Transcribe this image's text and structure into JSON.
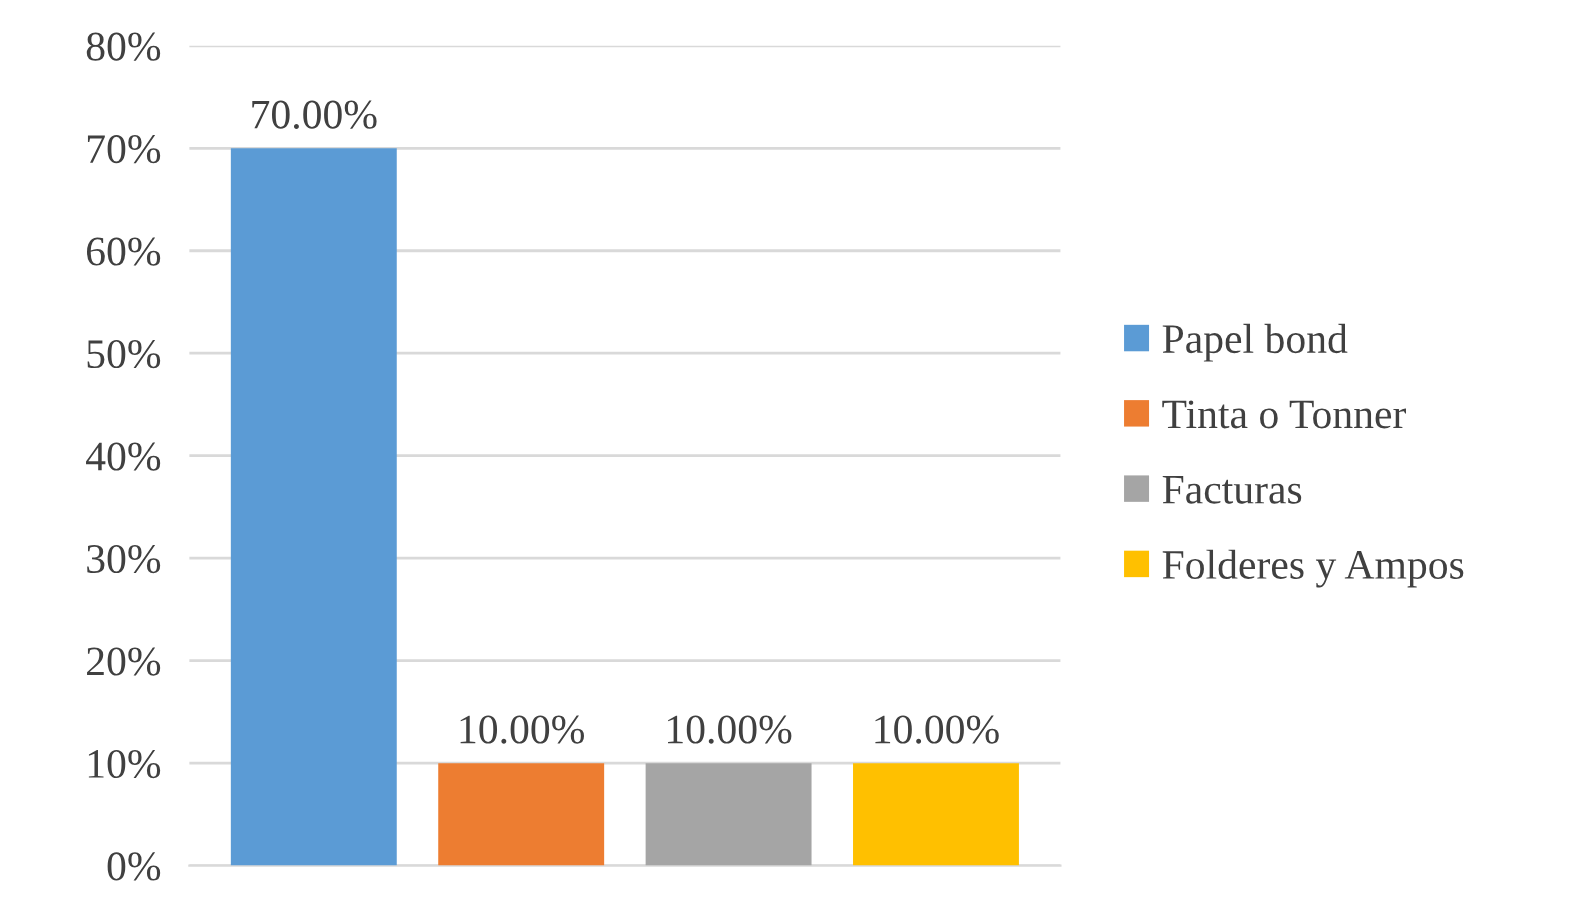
{
  "chart_data": {
    "type": "bar",
    "categories": [
      null
    ],
    "series": [
      {
        "name": "Papel bond",
        "color": "#5b9bd5",
        "values": [
          70
        ],
        "value_labels": [
          "70.00%"
        ]
      },
      {
        "name": "Tinta o Tonner",
        "color": "#ed7d31",
        "values": [
          10
        ],
        "value_labels": [
          "10.00%"
        ]
      },
      {
        "name": "Facturas",
        "color": "#a5a5a5",
        "values": [
          10
        ],
        "value_labels": [
          "10.00%"
        ]
      },
      {
        "name": "Folderes y Ampos",
        "color": "#ffc000",
        "values": [
          10
        ],
        "value_labels": [
          "10.00%"
        ]
      }
    ],
    "ylim": [
      0,
      80
    ],
    "yticks": [
      {
        "value": 0,
        "label": "0%"
      },
      {
        "value": 10,
        "label": "10%"
      },
      {
        "value": 20,
        "label": "20%"
      },
      {
        "value": 30,
        "label": "30%"
      },
      {
        "value": 40,
        "label": "40%"
      },
      {
        "value": 50,
        "label": "50%"
      },
      {
        "value": 60,
        "label": "60%"
      },
      {
        "value": 70,
        "label": "70%"
      },
      {
        "value": 80,
        "label": "80%"
      }
    ],
    "grid": "y",
    "legend": "right"
  }
}
